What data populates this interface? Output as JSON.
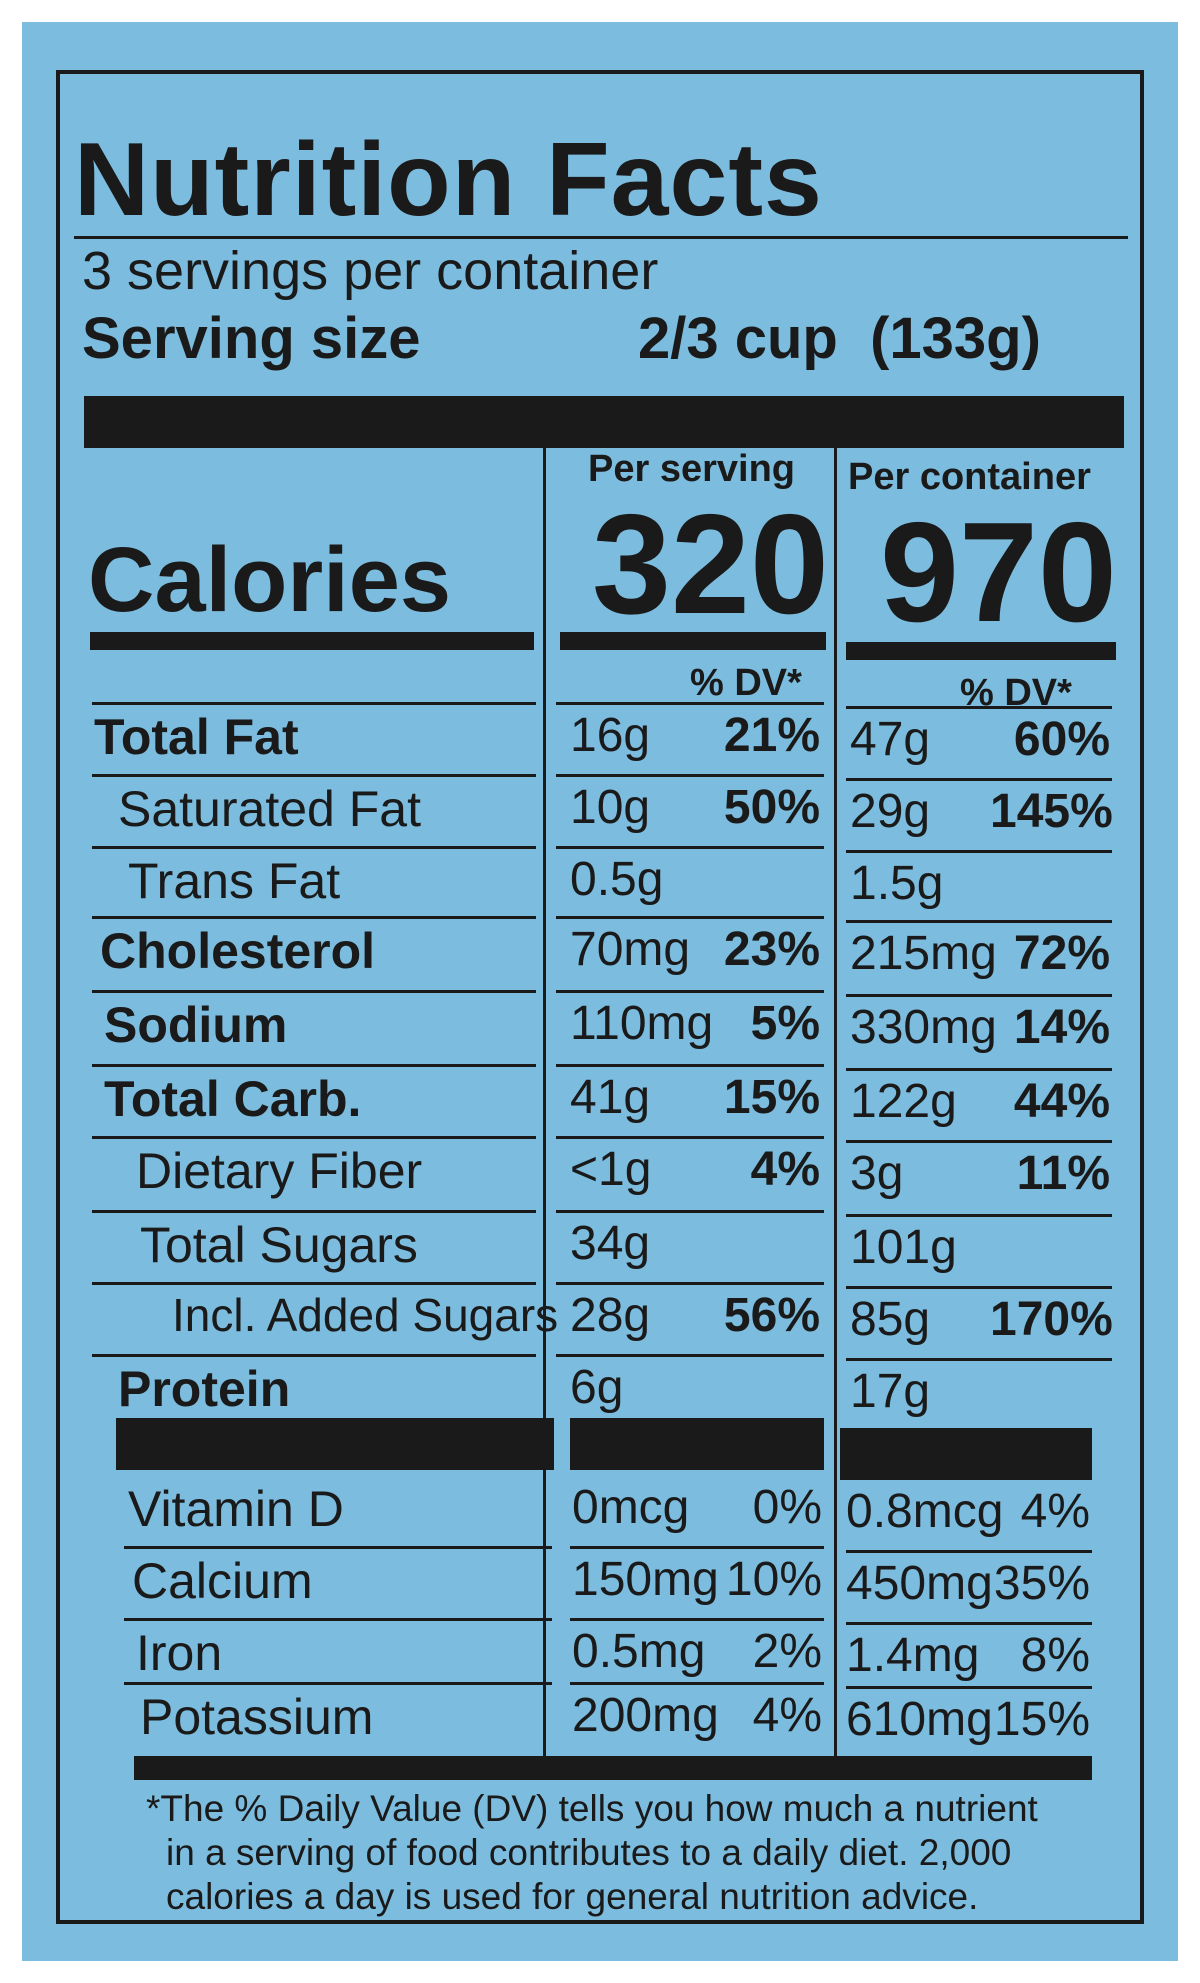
{
  "title": "Nutrition Facts",
  "servings_per_container": "3 servings per container",
  "serving_size_label": "Serving size",
  "serving_size_value": "2/3 cup  (133g)",
  "calories_label": "Calories",
  "per_serving_header": "Per serving",
  "per_container_header": "Per container",
  "calories_per_serving": "320",
  "calories_per_container": "970",
  "dv_header": "% DV*",
  "nutrients": [
    {
      "name": "Total Fat",
      "bold": true,
      "serv_amt": "16g",
      "serv_dv": "21%",
      "cont_amt": "47g",
      "cont_dv": "60%"
    },
    {
      "name": "Saturated Fat",
      "bold": false,
      "serv_amt": "10g",
      "serv_dv": "50%",
      "cont_amt": "29g",
      "cont_dv": "145%"
    },
    {
      "name": "Trans Fat",
      "bold": false,
      "serv_amt": "0.5g",
      "serv_dv": "",
      "cont_amt": "1.5g",
      "cont_dv": ""
    },
    {
      "name": "Cholesterol",
      "bold": true,
      "serv_amt": "70mg",
      "serv_dv": "23%",
      "cont_amt": "215mg",
      "cont_dv": "72%"
    },
    {
      "name": "Sodium",
      "bold": true,
      "serv_amt": "110mg",
      "serv_dv": "5%",
      "cont_amt": "330mg",
      "cont_dv": "14%"
    },
    {
      "name": "Total Carb.",
      "bold": true,
      "serv_amt": "41g",
      "serv_dv": "15%",
      "cont_amt": "122g",
      "cont_dv": "44%"
    },
    {
      "name": "Dietary Fiber",
      "bold": false,
      "serv_amt": "<1g",
      "serv_dv": "4%",
      "cont_amt": "3g",
      "cont_dv": "11%"
    },
    {
      "name": "Total Sugars",
      "bold": false,
      "serv_amt": "34g",
      "serv_dv": "",
      "cont_amt": "101g",
      "cont_dv": ""
    },
    {
      "name": "Incl. Added Sugars",
      "bold": false,
      "serv_amt": "28g",
      "serv_dv": "56%",
      "cont_amt": "85g",
      "cont_dv": "170%"
    },
    {
      "name": "Protein",
      "bold": true,
      "serv_amt": "6g",
      "serv_dv": "",
      "cont_amt": "17g",
      "cont_dv": ""
    }
  ],
  "vitamins": [
    {
      "name": "Vitamin D",
      "serv_amt": "0mcg",
      "serv_dv": "0%",
      "cont_amt": "0.8mcg",
      "cont_dv": "4%"
    },
    {
      "name": "Calcium",
      "serv_amt": "150mg",
      "serv_dv": "10%",
      "cont_amt": "450mg",
      "cont_dv": "35%"
    },
    {
      "name": "Iron",
      "serv_amt": "0.5mg",
      "serv_dv": "2%",
      "cont_amt": "1.4mg",
      "cont_dv": "8%"
    },
    {
      "name": "Potassium",
      "serv_amt": "200mg",
      "serv_dv": "4%",
      "cont_amt": "610mg",
      "cont_dv": "15%"
    }
  ],
  "footnote": [
    "*The % Daily Value (DV) tells you how much a nutrient",
    "in a serving of food contributes to a daily diet. 2,000",
    "calories a day is used for general nutrition advice."
  ],
  "colors": {
    "background": "#7cbcde",
    "ink": "#1a1a1a"
  }
}
